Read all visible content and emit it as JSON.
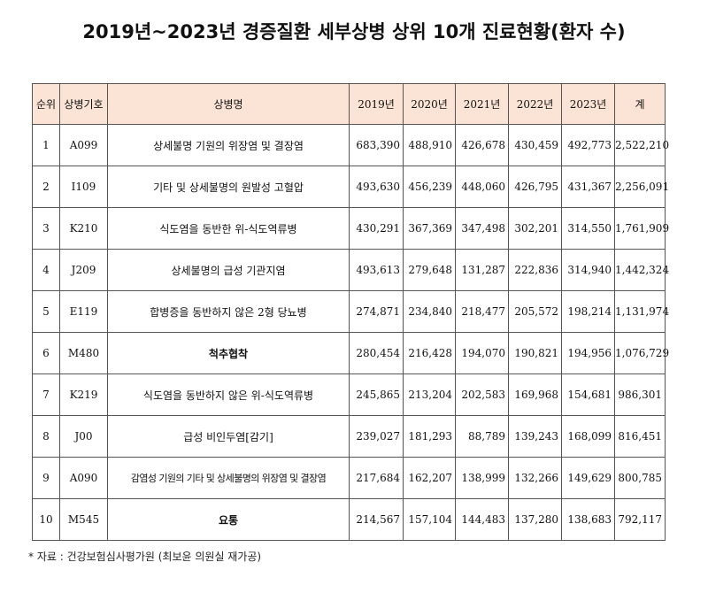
{
  "title": "2019년~2023년 경증질환 세부상병 상위 10개 진료현황(환자 수)",
  "colors": {
    "header_bg": "#fbe4d5",
    "border": "#555555"
  },
  "table": {
    "headers": [
      "순위",
      "상병기호",
      "상병명",
      "2019년",
      "2020년",
      "2021년",
      "2022년",
      "2023년",
      "계"
    ],
    "rows": [
      [
        "1",
        "A099",
        "상세불명 기원의 위장염 및 결장염",
        "683,390",
        "488,910",
        "426,678",
        "430,459",
        "492,773",
        "2,522,210"
      ],
      [
        "2",
        "I109",
        "기타 및 상세불명의 원발성 고혈압",
        "493,630",
        "456,239",
        "448,060",
        "426,795",
        "431,367",
        "2,256,091"
      ],
      [
        "3",
        "K210",
        "식도염을 동반한 위-식도역류병",
        "430,291",
        "367,369",
        "347,498",
        "302,201",
        "314,550",
        "1,761,909"
      ],
      [
        "4",
        "J209",
        "상세불명의 급성 기관지염",
        "493,613",
        "279,648",
        "131,287",
        "222,836",
        "314,940",
        "1,442,324"
      ],
      [
        "5",
        "E119",
        "합병증을 동반하지 않은 2형 당뇨병",
        "274,871",
        "234,840",
        "218,477",
        "205,572",
        "198,214",
        "1,131,974"
      ],
      [
        "6",
        "M480",
        "척추협착",
        "280,454",
        "216,428",
        "194,070",
        "190,821",
        "194,956",
        "1,076,729"
      ],
      [
        "7",
        "K219",
        "식도염을 동반하지 않은 위-식도역류병",
        "245,865",
        "213,204",
        "202,583",
        "169,968",
        "154,681",
        "986,301"
      ],
      [
        "8",
        "J00",
        "급성 비인두염[감기]",
        "239,027",
        "181,293",
        "88,789",
        "139,243",
        "168,099",
        "816,451"
      ],
      [
        "9",
        "A090",
        "감염성 기원의 기타 및 상세불명의 위장염 및 결장염",
        "217,684",
        "162,207",
        "138,999",
        "132,266",
        "149,629",
        "800,785"
      ],
      [
        "10",
        "M545",
        "요통",
        "214,567",
        "157,104",
        "144,483",
        "137,280",
        "138,683",
        "792,117"
      ]
    ]
  },
  "footnote": "* 자료 : 건강보험심사평가원 (최보윤 의원실 재가공)"
}
